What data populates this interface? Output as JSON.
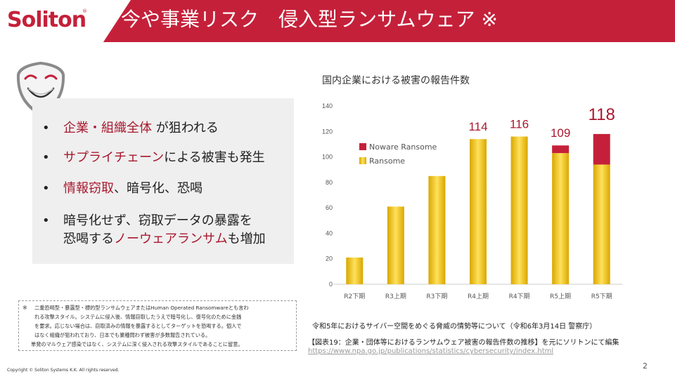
{
  "header": {
    "logo": "Soliton",
    "logo_mark": "®",
    "title": "今や事業リスク　侵入型ランサムウェア ※"
  },
  "bullets": [
    {
      "parts": [
        {
          "text": "企業・組織全体",
          "hl": true
        },
        {
          "text": " が狙われる",
          "hl": false
        }
      ]
    },
    {
      "parts": [
        {
          "text": "サプライチェーン",
          "hl": true
        },
        {
          "text": "による被害も発生",
          "hl": false
        }
      ]
    },
    {
      "parts": [
        {
          "text": "情報窃取",
          "hl": true
        },
        {
          "text": "、暗号化、恐喝",
          "hl": false
        }
      ]
    },
    {
      "parts": [
        {
          "text": "暗号化せず、窃取データの暴露を",
          "hl": false
        }
      ]
    },
    {
      "parts": [
        {
          "text": "恐喝する",
          "hl": false
        },
        {
          "text": "ノーウェアランサム",
          "hl": true
        },
        {
          "text": "も増加",
          "hl": false
        }
      ],
      "continuation": true
    }
  ],
  "bullet_symbol": "•",
  "footnote": {
    "mark": "※",
    "lines": [
      "二重恐喝型・暴露型・標的型ランサムウェアまたはHuman Operated Ransomwareとも言わ",
      "れる攻撃スタイル。システムに侵入後、情報窃取したうえで暗号化し、復号化のために金銭",
      "を要求。応じない場合は、窃取済みの情報を暴露するとしてターゲットを恐喝する。個人で",
      "はなく組織が狙われており、日本でも業種問わず被害が多数報告されている。",
      "単発のマルウェア感染ではなく、システムに深く侵入される攻撃スタイルであることに留意。"
    ]
  },
  "copyright": "Copyright © Soliton Systems K.K. All rights reserved.",
  "page_number": "2",
  "chart_data": {
    "type": "bar",
    "stacked": true,
    "title": "国内企業における被害の報告件数",
    "categories": [
      "R2下期",
      "R3上期",
      "R3下期",
      "R4上期",
      "R4下期",
      "R5上期",
      "R5下期"
    ],
    "series": [
      {
        "name": "Ransome",
        "values": [
          21,
          61,
          85,
          114,
          116,
          103,
          94
        ],
        "color": "#f2c200"
      },
      {
        "name": "Noware Ransome",
        "values": [
          0,
          0,
          0,
          0,
          0,
          6,
          24
        ],
        "color": "#c5203a"
      }
    ],
    "totals": [
      null,
      null,
      null,
      114,
      116,
      109,
      118
    ],
    "ylim": [
      0,
      140
    ],
    "yticks": [
      0,
      20,
      40,
      60,
      80,
      100,
      120,
      140
    ],
    "grid": false,
    "legend": "top-left",
    "xlabel": "",
    "ylabel": ""
  },
  "source": {
    "line1": "令和5年におけるサイバー空間をめぐる脅威の情勢等について（令和6年3月14日 警察庁）",
    "line2": "【図表19：企業・団体等におけるランサムウェア被害の報告件数の推移】を元にソリトンにて編集",
    "url": "https://www.npa.go.jp/publications/statistics/cybersecurity/index.html"
  }
}
